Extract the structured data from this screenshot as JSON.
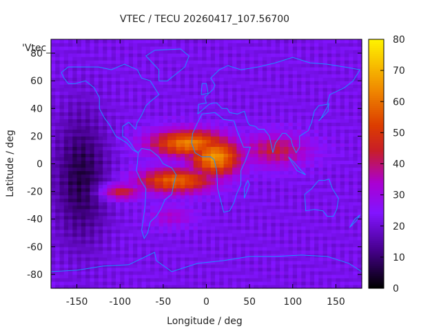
{
  "chart_data": {
    "type": "heatmap",
    "title": "VTEC / TECU 20260417_107.56700",
    "xlabel": "Longitude / deg",
    "ylabel": "Latitude / deg",
    "xlim": [
      -180,
      180
    ],
    "ylim": [
      -90,
      90
    ],
    "x_ticks": [
      -150,
      -100,
      -50,
      0,
      50,
      100,
      150
    ],
    "y_ticks": [
      -80,
      -60,
      -40,
      -20,
      0,
      20,
      40,
      60,
      80
    ],
    "colorbar": {
      "range": [
        0,
        80
      ],
      "ticks": [
        0,
        10,
        20,
        30,
        40,
        50,
        60,
        70,
        80
      ],
      "palette": "black-purple-red-orange-yellow"
    },
    "legend_entry": "'Vtec_",
    "coastline_color": "#1e90ff",
    "grid": false,
    "features": [
      {
        "name": "equatorial anomaly crest",
        "lon": -20,
        "lat": 15,
        "value": 62,
        "spread_lon": 45,
        "spread_lat": 10
      },
      {
        "name": "equatorial anomaly south",
        "lon": -35,
        "lat": -12,
        "value": 58,
        "spread_lon": 45,
        "spread_lat": 9
      },
      {
        "name": "africa peak",
        "lon": 10,
        "lat": 5,
        "value": 65,
        "spread_lon": 30,
        "spread_lat": 14
      },
      {
        "name": "south america band",
        "lon": -100,
        "lat": -20,
        "value": 45,
        "spread_lon": 25,
        "spread_lat": 6
      },
      {
        "name": "indian ocean tail",
        "lon": 80,
        "lat": 10,
        "value": 42,
        "spread_lon": 40,
        "spread_lat": 12
      },
      {
        "name": "south atlantic",
        "lon": -40,
        "lat": -38,
        "value": 33,
        "spread_lon": 25,
        "spread_lat": 8
      }
    ],
    "background_value": 22,
    "night_minimum": {
      "lon": -145,
      "lat": -10,
      "value": 6
    }
  }
}
